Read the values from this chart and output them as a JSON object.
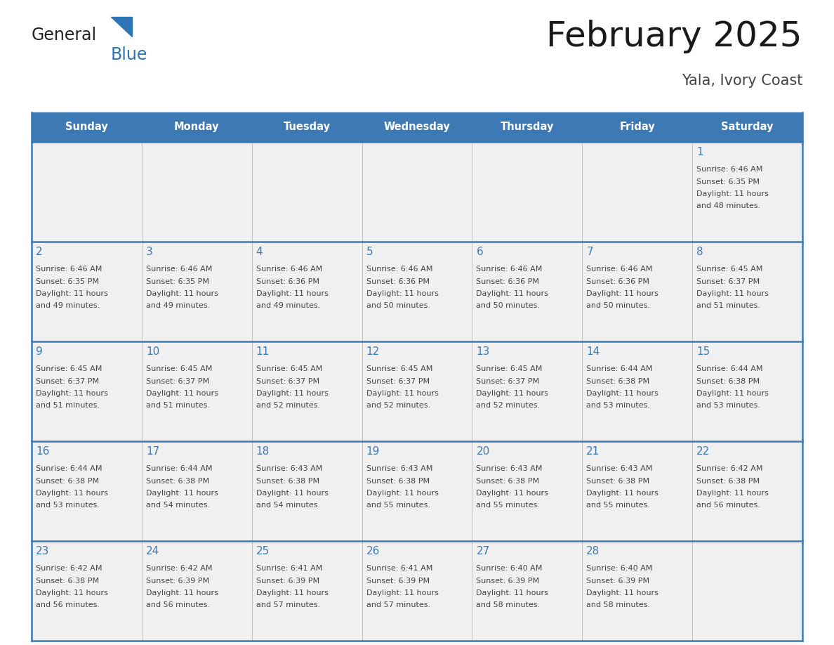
{
  "title": "February 2025",
  "subtitle": "Yala, Ivory Coast",
  "header_bg_color": "#3d7ab5",
  "header_text_color": "#ffffff",
  "cell_bg_color_light": "#f0f0f0",
  "cell_bg_color_white": "#ffffff",
  "day_number_color": "#3d7ab5",
  "text_color": "#444444",
  "line_color": "#3d7ab5",
  "border_color": "#3d7ab5",
  "days_of_week": [
    "Sunday",
    "Monday",
    "Tuesday",
    "Wednesday",
    "Thursday",
    "Friday",
    "Saturday"
  ],
  "weeks": [
    [
      {
        "day": null,
        "info": null
      },
      {
        "day": null,
        "info": null
      },
      {
        "day": null,
        "info": null
      },
      {
        "day": null,
        "info": null
      },
      {
        "day": null,
        "info": null
      },
      {
        "day": null,
        "info": null
      },
      {
        "day": 1,
        "info": "Sunrise: 6:46 AM\nSunset: 6:35 PM\nDaylight: 11 hours\nand 48 minutes."
      }
    ],
    [
      {
        "day": 2,
        "info": "Sunrise: 6:46 AM\nSunset: 6:35 PM\nDaylight: 11 hours\nand 49 minutes."
      },
      {
        "day": 3,
        "info": "Sunrise: 6:46 AM\nSunset: 6:35 PM\nDaylight: 11 hours\nand 49 minutes."
      },
      {
        "day": 4,
        "info": "Sunrise: 6:46 AM\nSunset: 6:36 PM\nDaylight: 11 hours\nand 49 minutes."
      },
      {
        "day": 5,
        "info": "Sunrise: 6:46 AM\nSunset: 6:36 PM\nDaylight: 11 hours\nand 50 minutes."
      },
      {
        "day": 6,
        "info": "Sunrise: 6:46 AM\nSunset: 6:36 PM\nDaylight: 11 hours\nand 50 minutes."
      },
      {
        "day": 7,
        "info": "Sunrise: 6:46 AM\nSunset: 6:36 PM\nDaylight: 11 hours\nand 50 minutes."
      },
      {
        "day": 8,
        "info": "Sunrise: 6:45 AM\nSunset: 6:37 PM\nDaylight: 11 hours\nand 51 minutes."
      }
    ],
    [
      {
        "day": 9,
        "info": "Sunrise: 6:45 AM\nSunset: 6:37 PM\nDaylight: 11 hours\nand 51 minutes."
      },
      {
        "day": 10,
        "info": "Sunrise: 6:45 AM\nSunset: 6:37 PM\nDaylight: 11 hours\nand 51 minutes."
      },
      {
        "day": 11,
        "info": "Sunrise: 6:45 AM\nSunset: 6:37 PM\nDaylight: 11 hours\nand 52 minutes."
      },
      {
        "day": 12,
        "info": "Sunrise: 6:45 AM\nSunset: 6:37 PM\nDaylight: 11 hours\nand 52 minutes."
      },
      {
        "day": 13,
        "info": "Sunrise: 6:45 AM\nSunset: 6:37 PM\nDaylight: 11 hours\nand 52 minutes."
      },
      {
        "day": 14,
        "info": "Sunrise: 6:44 AM\nSunset: 6:38 PM\nDaylight: 11 hours\nand 53 minutes."
      },
      {
        "day": 15,
        "info": "Sunrise: 6:44 AM\nSunset: 6:38 PM\nDaylight: 11 hours\nand 53 minutes."
      }
    ],
    [
      {
        "day": 16,
        "info": "Sunrise: 6:44 AM\nSunset: 6:38 PM\nDaylight: 11 hours\nand 53 minutes."
      },
      {
        "day": 17,
        "info": "Sunrise: 6:44 AM\nSunset: 6:38 PM\nDaylight: 11 hours\nand 54 minutes."
      },
      {
        "day": 18,
        "info": "Sunrise: 6:43 AM\nSunset: 6:38 PM\nDaylight: 11 hours\nand 54 minutes."
      },
      {
        "day": 19,
        "info": "Sunrise: 6:43 AM\nSunset: 6:38 PM\nDaylight: 11 hours\nand 55 minutes."
      },
      {
        "day": 20,
        "info": "Sunrise: 6:43 AM\nSunset: 6:38 PM\nDaylight: 11 hours\nand 55 minutes."
      },
      {
        "day": 21,
        "info": "Sunrise: 6:43 AM\nSunset: 6:38 PM\nDaylight: 11 hours\nand 55 minutes."
      },
      {
        "day": 22,
        "info": "Sunrise: 6:42 AM\nSunset: 6:38 PM\nDaylight: 11 hours\nand 56 minutes."
      }
    ],
    [
      {
        "day": 23,
        "info": "Sunrise: 6:42 AM\nSunset: 6:38 PM\nDaylight: 11 hours\nand 56 minutes."
      },
      {
        "day": 24,
        "info": "Sunrise: 6:42 AM\nSunset: 6:39 PM\nDaylight: 11 hours\nand 56 minutes."
      },
      {
        "day": 25,
        "info": "Sunrise: 6:41 AM\nSunset: 6:39 PM\nDaylight: 11 hours\nand 57 minutes."
      },
      {
        "day": 26,
        "info": "Sunrise: 6:41 AM\nSunset: 6:39 PM\nDaylight: 11 hours\nand 57 minutes."
      },
      {
        "day": 27,
        "info": "Sunrise: 6:40 AM\nSunset: 6:39 PM\nDaylight: 11 hours\nand 58 minutes."
      },
      {
        "day": 28,
        "info": "Sunrise: 6:40 AM\nSunset: 6:39 PM\nDaylight: 11 hours\nand 58 minutes."
      },
      {
        "day": null,
        "info": null
      }
    ]
  ],
  "logo_text_general": "General",
  "logo_text_blue": "Blue",
  "logo_triangle_color": "#2e75b6",
  "logo_general_color": "#222222"
}
